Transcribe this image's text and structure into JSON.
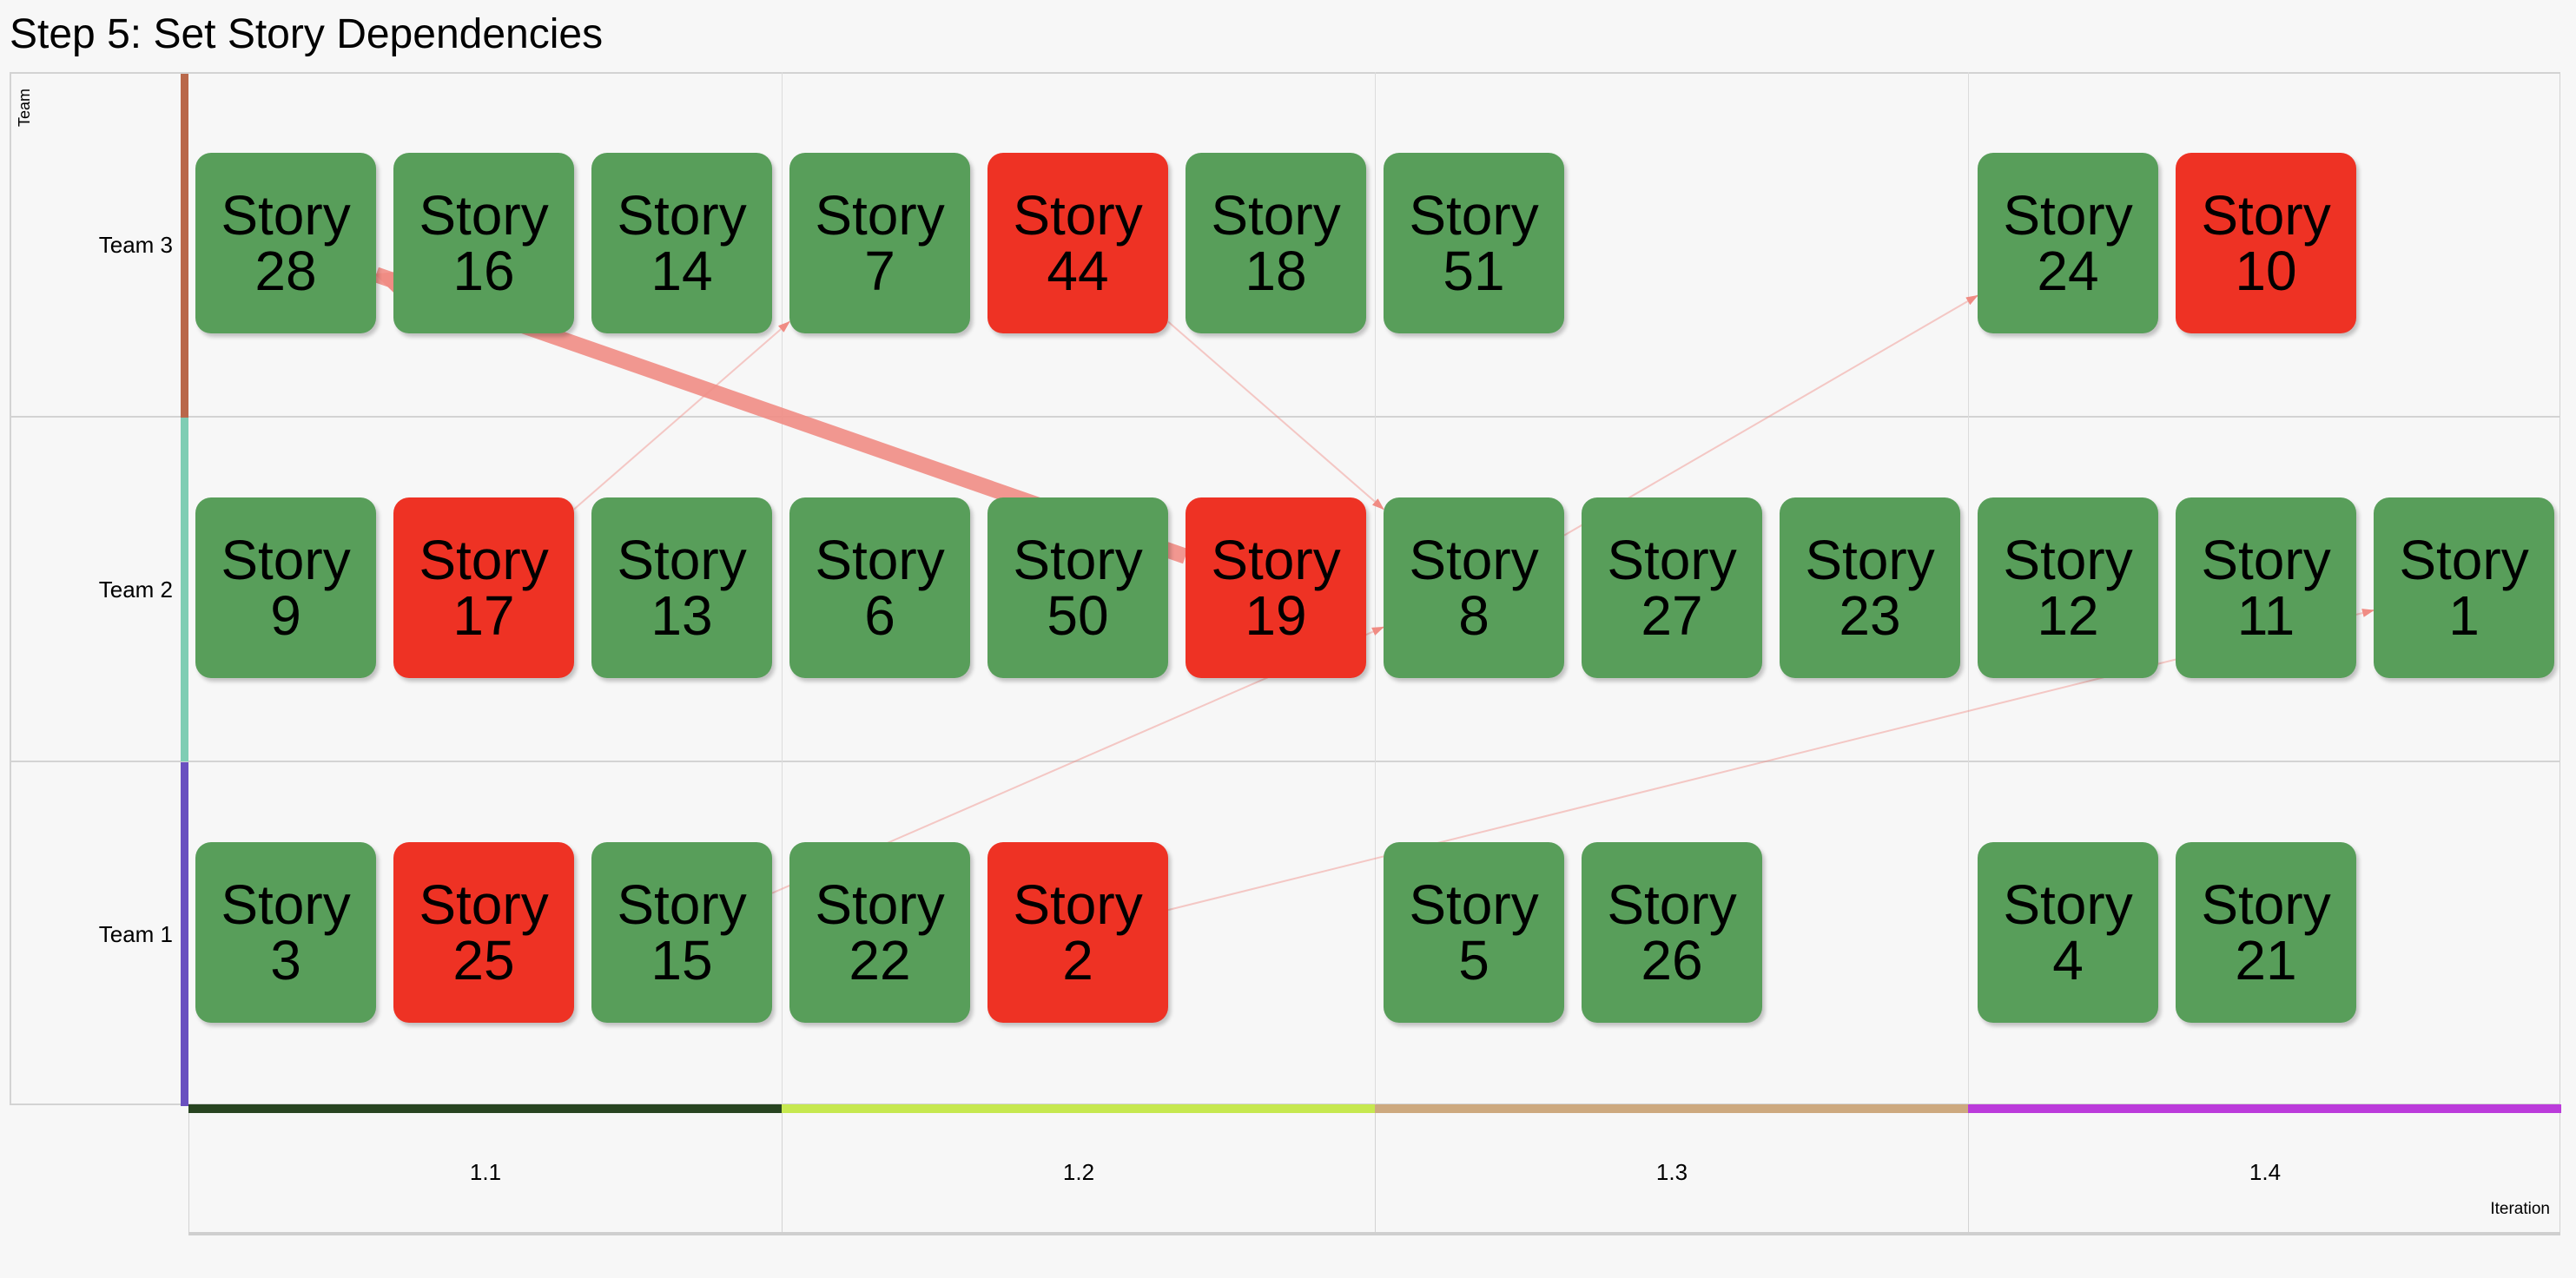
{
  "title": "Step 5: Set Story Dependencies",
  "axes": {
    "team_label": "Team",
    "iteration_label": "Iteration"
  },
  "colors": {
    "green": "#589e5a",
    "red": "#ee3224",
    "arrow": "#f08c84"
  },
  "teams": [
    {
      "label": "Team 3",
      "color": "#b9684a"
    },
    {
      "label": "Team 2",
      "color": "#7fcdb4"
    },
    {
      "label": "Team 1",
      "color": "#6a50c0"
    }
  ],
  "iterations": [
    {
      "label": "1.1",
      "color": "#284421"
    },
    {
      "label": "1.2",
      "color": "#c6e84f"
    },
    {
      "label": "1.3",
      "color": "#cda97f"
    },
    {
      "label": "1.4",
      "color": "#bb3bdb"
    }
  ],
  "story_word": "Story",
  "stories": [
    {
      "team": 0,
      "slot": 0,
      "num": "28",
      "status": "ok"
    },
    {
      "team": 0,
      "slot": 1,
      "num": "16",
      "status": "ok"
    },
    {
      "team": 0,
      "slot": 2,
      "num": "14",
      "status": "ok"
    },
    {
      "team": 0,
      "slot": 3,
      "num": "7",
      "status": "ok"
    },
    {
      "team": 0,
      "slot": 4,
      "num": "44",
      "status": "blocked"
    },
    {
      "team": 0,
      "slot": 5,
      "num": "18",
      "status": "ok"
    },
    {
      "team": 0,
      "slot": 6,
      "num": "51",
      "status": "ok"
    },
    {
      "team": 0,
      "slot": 9,
      "num": "24",
      "status": "ok"
    },
    {
      "team": 0,
      "slot": 10,
      "num": "10",
      "status": "blocked"
    },
    {
      "team": 1,
      "slot": 0,
      "num": "9",
      "status": "ok"
    },
    {
      "team": 1,
      "slot": 1,
      "num": "17",
      "status": "blocked"
    },
    {
      "team": 1,
      "slot": 2,
      "num": "13",
      "status": "ok"
    },
    {
      "team": 1,
      "slot": 3,
      "num": "6",
      "status": "ok"
    },
    {
      "team": 1,
      "slot": 4,
      "num": "50",
      "status": "ok"
    },
    {
      "team": 1,
      "slot": 5,
      "num": "19",
      "status": "blocked"
    },
    {
      "team": 1,
      "slot": 6,
      "num": "8",
      "status": "ok"
    },
    {
      "team": 1,
      "slot": 7,
      "num": "27",
      "status": "ok"
    },
    {
      "team": 1,
      "slot": 8,
      "num": "23",
      "status": "ok"
    },
    {
      "team": 1,
      "slot": 9,
      "num": "12",
      "status": "ok"
    },
    {
      "team": 1,
      "slot": 10,
      "num": "11",
      "status": "ok"
    },
    {
      "team": 1,
      "slot": 11,
      "num": "1",
      "status": "ok"
    },
    {
      "team": 2,
      "slot": 0,
      "num": "3",
      "status": "ok"
    },
    {
      "team": 2,
      "slot": 1,
      "num": "25",
      "status": "blocked"
    },
    {
      "team": 2,
      "slot": 2,
      "num": "15",
      "status": "ok"
    },
    {
      "team": 2,
      "slot": 3,
      "num": "22",
      "status": "ok"
    },
    {
      "team": 2,
      "slot": 4,
      "num": "2",
      "status": "blocked"
    },
    {
      "team": 2,
      "slot": 6,
      "num": "5",
      "status": "ok"
    },
    {
      "team": 2,
      "slot": 7,
      "num": "26",
      "status": "ok"
    },
    {
      "team": 2,
      "slot": 9,
      "num": "4",
      "status": "ok"
    },
    {
      "team": 2,
      "slot": 10,
      "num": "21",
      "status": "ok"
    }
  ],
  "dependencies": [
    {
      "from": "19",
      "to": "28",
      "weight": "strong"
    },
    {
      "from": "17",
      "to": "7",
      "weight": "light"
    },
    {
      "from": "44",
      "to": "8",
      "weight": "light"
    },
    {
      "from": "8",
      "to": "24",
      "weight": "light"
    },
    {
      "from": "15",
      "to": "8",
      "weight": "light"
    },
    {
      "from": "2",
      "to": "1",
      "weight": "light"
    }
  ]
}
